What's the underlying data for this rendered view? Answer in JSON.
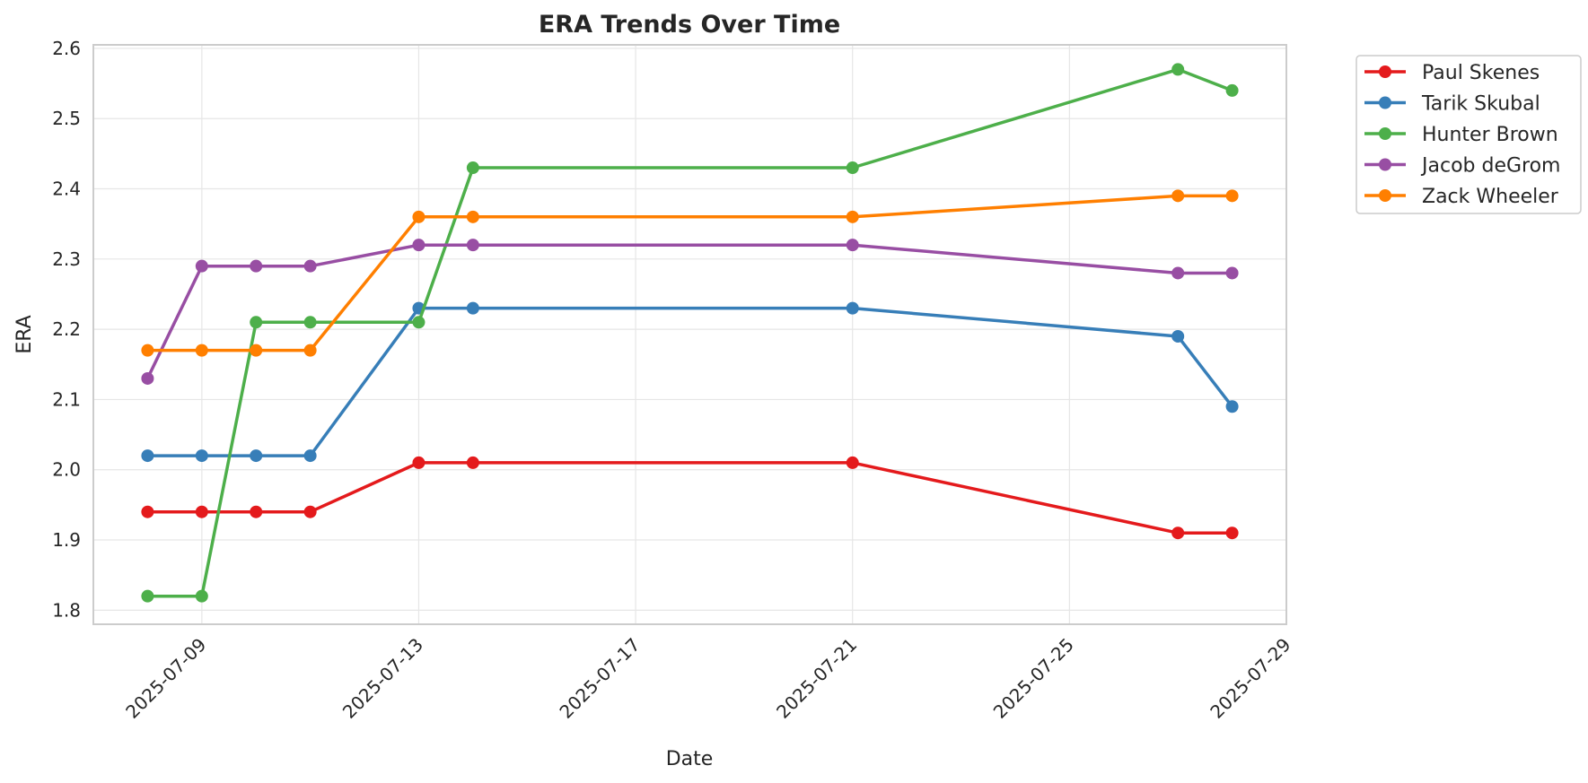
{
  "chart_data": {
    "type": "line",
    "title": "ERA Trends Over Time",
    "xlabel": "Date",
    "ylabel": "ERA",
    "ylim": [
      1.78,
      2.605
    ],
    "xlim": [
      "2025-07-07",
      "2025-07-29"
    ],
    "yticks": [
      "1.8",
      "1.9",
      "2.0",
      "2.1",
      "2.2",
      "2.3",
      "2.4",
      "2.5",
      "2.6"
    ],
    "xticks": [
      "2025-07-09",
      "2025-07-13",
      "2025-07-17",
      "2025-07-21",
      "2025-07-25",
      "2025-07-29"
    ],
    "grid": true,
    "legend_position": "outside-top-right",
    "series": [
      {
        "name": "Paul Skenes",
        "color": "#e41a1c",
        "points": [
          {
            "x": "2025-07-08",
            "y": 1.94
          },
          {
            "x": "2025-07-09",
            "y": 1.94
          },
          {
            "x": "2025-07-10",
            "y": 1.94
          },
          {
            "x": "2025-07-11",
            "y": 1.94
          },
          {
            "x": "2025-07-13",
            "y": 2.01
          },
          {
            "x": "2025-07-14",
            "y": 2.01
          },
          {
            "x": "2025-07-21",
            "y": 2.01
          },
          {
            "x": "2025-07-27",
            "y": 1.91
          },
          {
            "x": "2025-07-28",
            "y": 1.91
          }
        ]
      },
      {
        "name": "Tarik Skubal",
        "color": "#377eb8",
        "points": [
          {
            "x": "2025-07-08",
            "y": 2.02
          },
          {
            "x": "2025-07-09",
            "y": 2.02
          },
          {
            "x": "2025-07-10",
            "y": 2.02
          },
          {
            "x": "2025-07-11",
            "y": 2.02
          },
          {
            "x": "2025-07-13",
            "y": 2.23
          },
          {
            "x": "2025-07-14",
            "y": 2.23
          },
          {
            "x": "2025-07-21",
            "y": 2.23
          },
          {
            "x": "2025-07-27",
            "y": 2.19
          },
          {
            "x": "2025-07-28",
            "y": 2.09
          }
        ]
      },
      {
        "name": "Hunter Brown",
        "color": "#4daf4a",
        "points": [
          {
            "x": "2025-07-08",
            "y": 1.82
          },
          {
            "x": "2025-07-09",
            "y": 1.82
          },
          {
            "x": "2025-07-10",
            "y": 2.21
          },
          {
            "x": "2025-07-11",
            "y": 2.21
          },
          {
            "x": "2025-07-13",
            "y": 2.21
          },
          {
            "x": "2025-07-14",
            "y": 2.43
          },
          {
            "x": "2025-07-21",
            "y": 2.43
          },
          {
            "x": "2025-07-27",
            "y": 2.57
          },
          {
            "x": "2025-07-28",
            "y": 2.54
          }
        ]
      },
      {
        "name": "Jacob deGrom",
        "color": "#984ea3",
        "points": [
          {
            "x": "2025-07-08",
            "y": 2.13
          },
          {
            "x": "2025-07-09",
            "y": 2.29
          },
          {
            "x": "2025-07-10",
            "y": 2.29
          },
          {
            "x": "2025-07-11",
            "y": 2.29
          },
          {
            "x": "2025-07-13",
            "y": 2.32
          },
          {
            "x": "2025-07-14",
            "y": 2.32
          },
          {
            "x": "2025-07-21",
            "y": 2.32
          },
          {
            "x": "2025-07-27",
            "y": 2.28
          },
          {
            "x": "2025-07-28",
            "y": 2.28
          }
        ]
      },
      {
        "name": "Zack Wheeler",
        "color": "#ff7f00",
        "points": [
          {
            "x": "2025-07-08",
            "y": 2.17
          },
          {
            "x": "2025-07-09",
            "y": 2.17
          },
          {
            "x": "2025-07-10",
            "y": 2.17
          },
          {
            "x": "2025-07-11",
            "y": 2.17
          },
          {
            "x": "2025-07-13",
            "y": 2.36
          },
          {
            "x": "2025-07-14",
            "y": 2.36
          },
          {
            "x": "2025-07-21",
            "y": 2.36
          },
          {
            "x": "2025-07-27",
            "y": 2.39
          },
          {
            "x": "2025-07-28",
            "y": 2.39
          }
        ]
      }
    ]
  }
}
